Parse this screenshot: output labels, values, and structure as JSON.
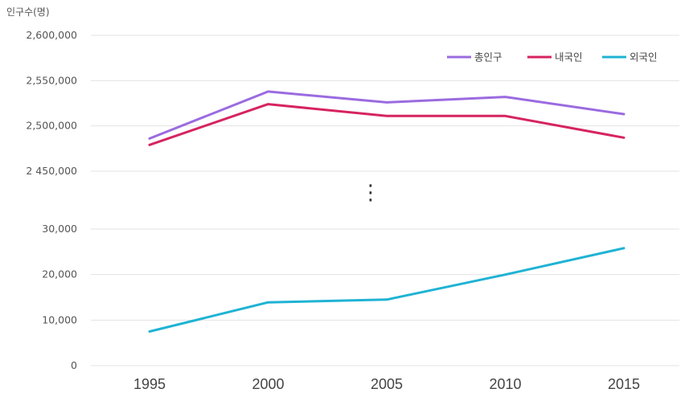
{
  "chart_data": {
    "type": "line",
    "ylabel": "인구수(명)",
    "categories": [
      "1995",
      "2000",
      "2005",
      "2010",
      "2015"
    ],
    "upper_axis": {
      "ylim": [
        2450000,
        2600000
      ],
      "ticks": [
        "2,600,000",
        "2,550,000",
        "2,500,000",
        "2 450,000"
      ],
      "tick_values": [
        2600000,
        2550000,
        2500000,
        2450000
      ]
    },
    "lower_axis": {
      "ylim": [
        0,
        30000
      ],
      "ticks": [
        "30,000",
        "20,000",
        "10,000",
        "0"
      ],
      "tick_values": [
        30000,
        20000,
        10000,
        0
      ]
    },
    "series": [
      {
        "name": "총인구",
        "color": "#9b6be0",
        "axis": "upper",
        "values": [
          2486000,
          2538000,
          2526000,
          2532000,
          2513000
        ]
      },
      {
        "name": "내국인",
        "color": "#d6245f",
        "axis": "upper",
        "values": [
          2479000,
          2524000,
          2511000,
          2511000,
          2487000
        ]
      },
      {
        "name": "외국인",
        "color": "#1fb3d4",
        "axis": "lower",
        "values": [
          7500,
          13900,
          14500,
          20000,
          25800
        ]
      }
    ],
    "axis_break": "⋮",
    "grid": true,
    "legend_position": "top-right"
  }
}
